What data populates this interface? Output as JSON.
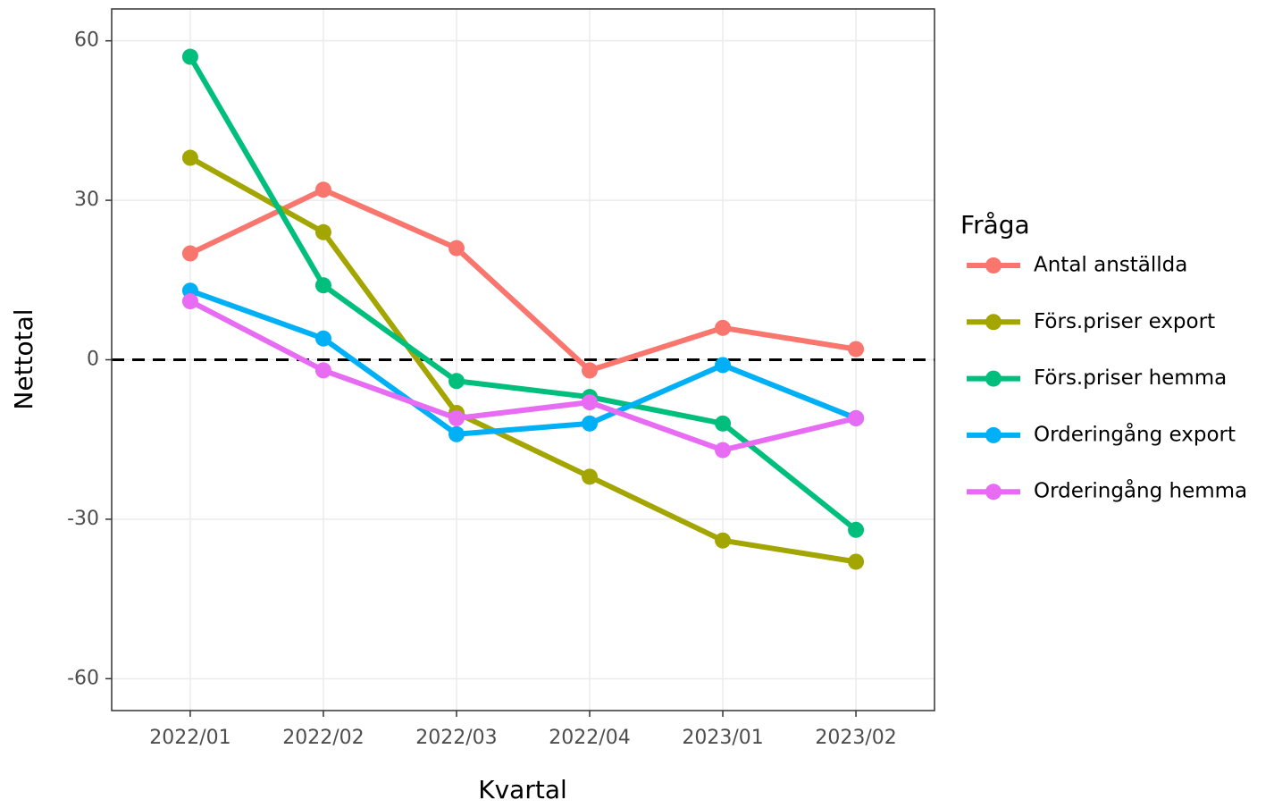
{
  "chart_data": {
    "type": "line",
    "x_label": "Kvartal",
    "y_label": "Nettotal",
    "legend_title": "Fråga",
    "categories": [
      "2022/01",
      "2022/02",
      "2022/03",
      "2022/04",
      "2023/01",
      "2023/02"
    ],
    "series": [
      {
        "name": "Antal anställda",
        "color": "#F8766D",
        "values": [
          20,
          32,
          21,
          -2,
          6,
          2
        ]
      },
      {
        "name": "Förs.priser export",
        "color": "#A3A500",
        "values": [
          38,
          24,
          -10,
          -22,
          -34,
          -38
        ]
      },
      {
        "name": "Förs.priser hemma",
        "color": "#00BF7D",
        "values": [
          57,
          14,
          -4,
          -7,
          -12,
          -32
        ]
      },
      {
        "name": "Orderingång export",
        "color": "#00B0F6",
        "values": [
          13,
          4,
          -14,
          -12,
          -1,
          -11
        ]
      },
      {
        "name": "Orderingång hemma",
        "color": "#E76BF3",
        "values": [
          11,
          -2,
          -11,
          -8,
          -17,
          -11
        ]
      }
    ],
    "ylim": [
      -66,
      66
    ],
    "yticks": [
      -60,
      -30,
      0,
      30,
      60
    ],
    "reference_line": 0,
    "grid": true,
    "legend": "right"
  }
}
